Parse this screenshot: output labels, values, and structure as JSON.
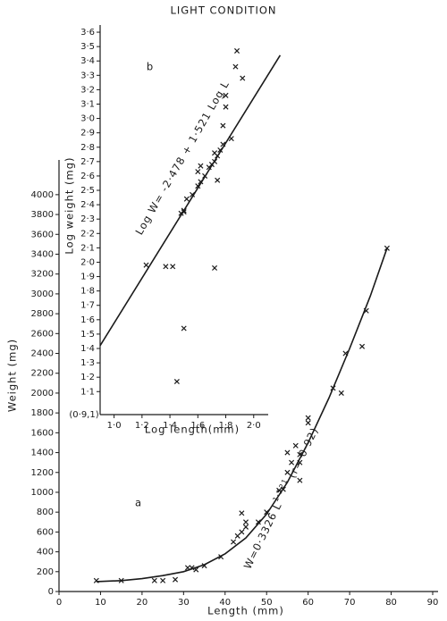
{
  "title": "LIGHT CONDITION",
  "chart_data": [
    {
      "type": "scatter",
      "panel_label": "a",
      "x_label": "Length (mm)",
      "y_label": "Weight (mg)",
      "annotation": {
        "text": "W=0·3326 L",
        "exponent": "1·521",
        "suffix": "(r= 0·92)"
      },
      "xlim": [
        0,
        90
      ],
      "ylim": [
        0,
        4350
      ],
      "xticks": [
        0,
        10,
        20,
        30,
        40,
        50,
        60,
        70,
        80,
        90
      ],
      "yticks": [
        0,
        200,
        400,
        600,
        800,
        1000,
        1200,
        1400,
        1600,
        1800,
        2000,
        2200,
        2400,
        2600,
        2800,
        3000,
        3200,
        3400,
        3600,
        3800,
        4000
      ],
      "color": "#1a1a1a",
      "series": [
        {
          "mode": "markers",
          "x": [
            9,
            15,
            23,
            25,
            28,
            31,
            32,
            33,
            35,
            39,
            42,
            43,
            44,
            44,
            45,
            45,
            48,
            50,
            53,
            54,
            55,
            55,
            56,
            57,
            58,
            58,
            58,
            60,
            60,
            66,
            68,
            69,
            73,
            74,
            79
          ],
          "values": [
            110,
            110,
            110,
            110,
            120,
            240,
            240,
            220,
            260,
            350,
            500,
            560,
            600,
            790,
            700,
            650,
            700,
            800,
            1020,
            1030,
            1200,
            1400,
            1300,
            1470,
            1380,
            1300,
            1120,
            1750,
            1700,
            2050,
            2000,
            2400,
            2470,
            2830,
            3460
          ]
        },
        {
          "mode": "line",
          "x": [
            9,
            15,
            20,
            25,
            30,
            35,
            40,
            45,
            50,
            55,
            60,
            65,
            70,
            75,
            79
          ],
          "values": [
            100,
            110,
            130,
            160,
            200,
            270,
            380,
            540,
            780,
            1100,
            1500,
            1950,
            2450,
            2980,
            3460
          ]
        }
      ]
    },
    {
      "type": "scatter",
      "panel_label": "b",
      "x_label": "Log length(mm)",
      "y_label": "Log weight (mg)",
      "origin_label": "(0·9,1)",
      "annotation": {
        "text": "Log W= -2·478 + 1·521 Log L"
      },
      "xlim": [
        0.9,
        2.2
      ],
      "ylim": [
        0.94,
        3.65
      ],
      "xticks": [
        {
          "value": 1.0,
          "label": "1·0"
        },
        {
          "value": 1.2,
          "label": "1·2"
        },
        {
          "value": 1.4,
          "label": "1·4"
        },
        {
          "value": 1.6,
          "label": "1·6"
        },
        {
          "value": 1.8,
          "label": "1·8"
        },
        {
          "value": 2.0,
          "label": "2·0"
        }
      ],
      "yticks": [
        {
          "value": 1.1,
          "label": "1·1"
        },
        {
          "value": 1.2,
          "label": "1·2"
        },
        {
          "value": 1.3,
          "label": "1·3"
        },
        {
          "value": 1.4,
          "label": "1·4"
        },
        {
          "value": 1.5,
          "label": "1·5"
        },
        {
          "value": 1.6,
          "label": "1·6"
        },
        {
          "value": 1.7,
          "label": "1·7"
        },
        {
          "value": 1.8,
          "label": "1·8"
        },
        {
          "value": 1.9,
          "label": "1·9"
        },
        {
          "value": 2.0,
          "label": "2·0"
        },
        {
          "value": 2.1,
          "label": "2·1"
        },
        {
          "value": 2.2,
          "label": "2·2"
        },
        {
          "value": 2.3,
          "label": "2·3"
        },
        {
          "value": 2.4,
          "label": "2·4"
        },
        {
          "value": 2.5,
          "label": "2·5"
        },
        {
          "value": 2.6,
          "label": "2·6"
        },
        {
          "value": 2.7,
          "label": "2·7"
        },
        {
          "value": 2.8,
          "label": "2·8"
        },
        {
          "value": 2.9,
          "label": "2·9"
        },
        {
          "value": 3.0,
          "label": "3·0"
        },
        {
          "value": 3.1,
          "label": "3·1"
        },
        {
          "value": 3.2,
          "label": "3·2"
        },
        {
          "value": 3.3,
          "label": "3·3"
        },
        {
          "value": 3.4,
          "label": "3·4"
        },
        {
          "value": 3.5,
          "label": "3·5"
        },
        {
          "value": 3.6,
          "label": "3·6"
        }
      ],
      "color": "#1a1a1a",
      "series": [
        {
          "mode": "markers",
          "x": [
            1.23,
            1.37,
            1.42,
            1.72,
            1.5,
            1.45,
            1.48,
            1.5,
            1.5,
            1.52,
            1.56,
            1.6,
            1.6,
            1.62,
            1.62,
            1.65,
            1.68,
            1.7,
            1.72,
            1.72,
            1.74,
            1.74,
            1.76,
            1.78,
            1.84,
            1.78,
            1.8,
            1.8,
            1.87,
            1.88,
            1.92
          ],
          "values": [
            1.98,
            1.97,
            1.97,
            1.96,
            1.54,
            1.17,
            2.34,
            2.36,
            2.35,
            2.44,
            2.47,
            2.53,
            2.63,
            2.56,
            2.67,
            2.6,
            2.66,
            2.68,
            2.7,
            2.76,
            2.74,
            2.57,
            2.78,
            2.82,
            2.86,
            2.95,
            3.08,
            3.16,
            3.36,
            3.47,
            3.28
          ]
        },
        {
          "mode": "line",
          "x": [
            0.9,
            2.19
          ],
          "values": [
            1.42,
            3.44
          ]
        }
      ]
    }
  ]
}
